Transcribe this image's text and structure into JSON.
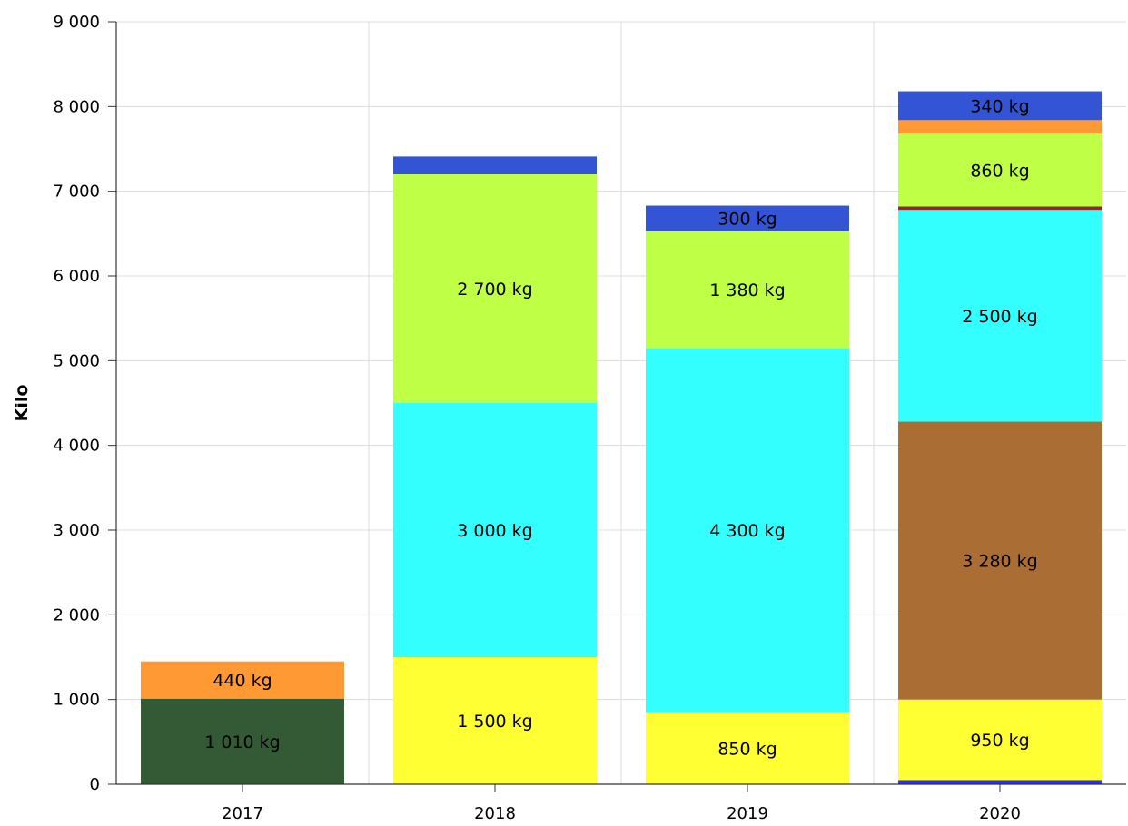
{
  "chart_data": {
    "type": "bar",
    "stacked": true,
    "ylabel": "Kilo",
    "xlabel": "",
    "ylim": [
      0,
      9000
    ],
    "yticks": [
      0,
      1000,
      2000,
      3000,
      4000,
      5000,
      6000,
      7000,
      8000,
      9000
    ],
    "ytick_labels": [
      "0",
      "1 000",
      "2 000",
      "3 000",
      "4 000",
      "5 000",
      "6 000",
      "7 000",
      "8 000",
      "9 000"
    ],
    "grid": true,
    "categories": [
      "2017",
      "2018",
      "2019",
      "2020"
    ],
    "stacks": [
      {
        "category": "2017",
        "segments": [
          {
            "value": 1010,
            "color": "#335a35",
            "label": "1 010 kg"
          },
          {
            "value": 440,
            "color": "#ff9933",
            "label": "440 kg"
          }
        ]
      },
      {
        "category": "2018",
        "segments": [
          {
            "value": 1500,
            "color": "#ffff33",
            "label": "1 500 kg"
          },
          {
            "value": 3000,
            "color": "#33ffff",
            "label": "3 000 kg"
          },
          {
            "value": 2700,
            "color": "#bfff46",
            "label": "2 700 kg"
          },
          {
            "value": 210,
            "color": "#3355d5",
            "label": ""
          }
        ]
      },
      {
        "category": "2019",
        "segments": [
          {
            "value": 850,
            "color": "#ffff33",
            "label": "850 kg"
          },
          {
            "value": 4300,
            "color": "#33ffff",
            "label": "4 300 kg"
          },
          {
            "value": 1380,
            "color": "#bfff46",
            "label": "1 380 kg"
          },
          {
            "value": 300,
            "color": "#3355d5",
            "label": "300 kg"
          }
        ]
      },
      {
        "category": "2020",
        "segments": [
          {
            "value": 50,
            "color": "#3333dd",
            "label": ""
          },
          {
            "value": 950,
            "color": "#ffff33",
            "label": "950 kg"
          },
          {
            "value": 3280,
            "color": "#aa6e35",
            "label": "3 280 kg"
          },
          {
            "value": 2500,
            "color": "#33ffff",
            "label": "2 500 kg"
          },
          {
            "value": 40,
            "color": "#8b2b25",
            "label": ""
          },
          {
            "value": 860,
            "color": "#bfff46",
            "label": "860 kg"
          },
          {
            "value": 160,
            "color": "#ff9933",
            "label": ""
          },
          {
            "value": 340,
            "color": "#3355d5",
            "label": "340 kg"
          }
        ]
      }
    ]
  }
}
